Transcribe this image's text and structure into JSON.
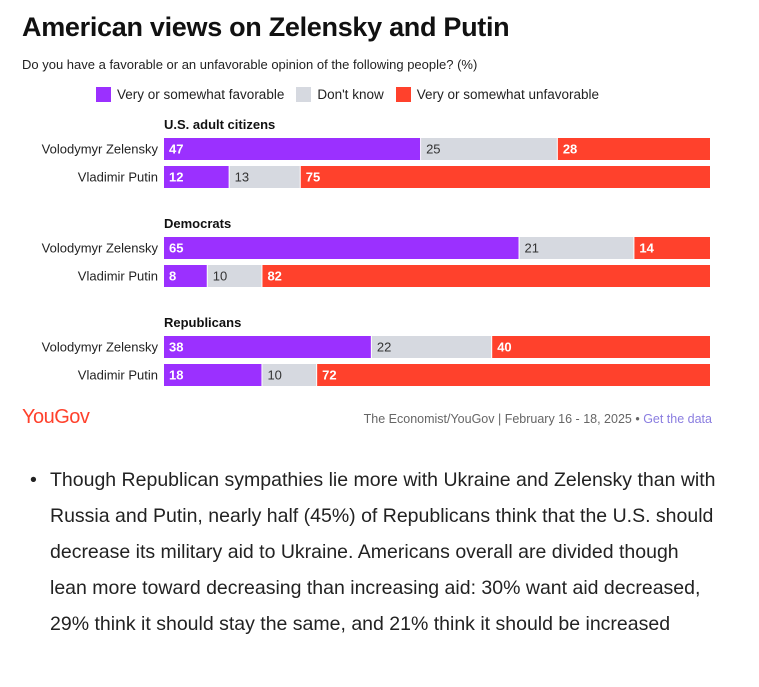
{
  "title": "American views on Zelensky and Putin",
  "subtitle": "Do you have a favorable or an unfavorable opinion of the following people? (%)",
  "colors": {
    "favorable": "#9b30ff",
    "dont_know": "#d6d9e0",
    "unfavorable": "#ff412c"
  },
  "chart_data": {
    "type": "bar",
    "orientation": "horizontal-stacked-100",
    "title": "American views on Zelensky and Putin",
    "subtitle": "Do you have a favorable or an unfavorable opinion of the following people? (%)",
    "legend": [
      "Very or somewhat favorable",
      "Don't know",
      "Very or somewhat unfavorable"
    ],
    "legend_position": "top",
    "groups": [
      {
        "name": "U.S. adult citizens",
        "rows": [
          {
            "label": "Volodymyr Zelensky",
            "values": [
              47,
              25,
              28
            ]
          },
          {
            "label": "Vladimir Putin",
            "values": [
              12,
              13,
              75
            ]
          }
        ]
      },
      {
        "name": "Democrats",
        "rows": [
          {
            "label": "Volodymyr Zelensky",
            "values": [
              65,
              21,
              14
            ]
          },
          {
            "label": "Vladimir Putin",
            "values": [
              8,
              10,
              82
            ]
          }
        ]
      },
      {
        "name": "Republicans",
        "rows": [
          {
            "label": "Volodymyr Zelensky",
            "values": [
              38,
              22,
              40
            ]
          },
          {
            "label": "Vladimir Putin",
            "values": [
              18,
              10,
              72
            ]
          }
        ]
      }
    ]
  },
  "footer": {
    "logo": "YouGov",
    "source": "The Economist/YouGov | February 16 - 18, 2025 •",
    "link": "Get the data"
  },
  "bullet": {
    "symbol": "•",
    "text": "Though Republican sympathies lie more with Ukraine and Zelensky than with Russia and Putin, nearly half (45%) of Republicans think that the U.S. should decrease its military aid to Ukraine. Americans overall are divided though lean more toward decreasing than increasing aid: 30% want aid decreased, 29% think it should stay the same, and 21% think it should be increased"
  }
}
